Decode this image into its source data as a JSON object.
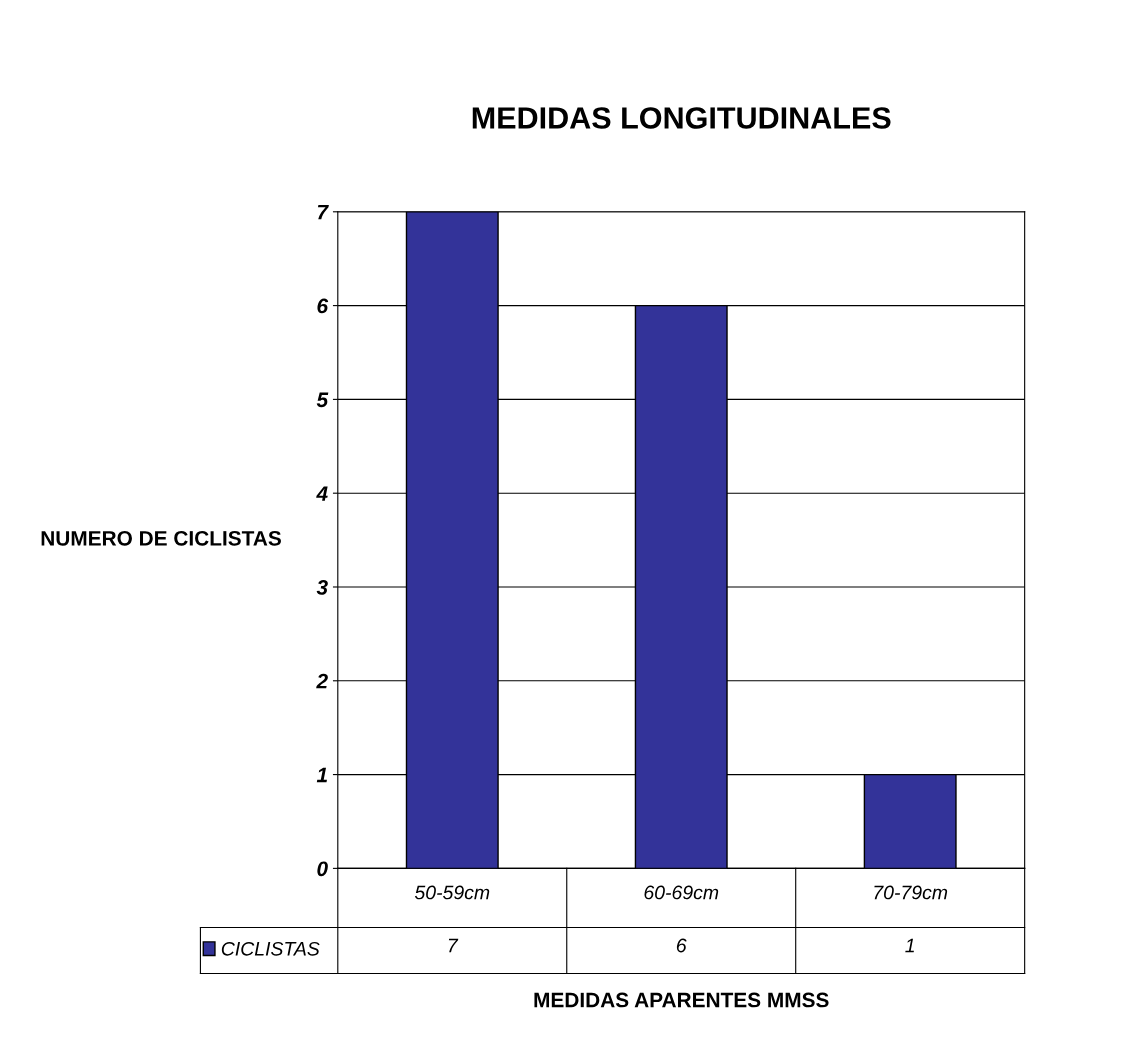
{
  "chart_data": {
    "type": "bar",
    "title": "MEDIDAS LONGITUDINALES",
    "xlabel": "MEDIDAS APARENTES MMSS",
    "ylabel": "NUMERO DE CICLISTAS",
    "categories": [
      "50-59cm",
      "60-69cm",
      "70-79cm"
    ],
    "series": [
      {
        "name": "CICLISTAS",
        "color": "#333399",
        "values": [
          7,
          6,
          1
        ]
      }
    ],
    "ylim": [
      0,
      7
    ],
    "yticks": [
      0,
      1,
      2,
      3,
      4,
      5,
      6,
      7
    ],
    "grid": "y",
    "data_labels": true,
    "legend": "bottom left"
  }
}
